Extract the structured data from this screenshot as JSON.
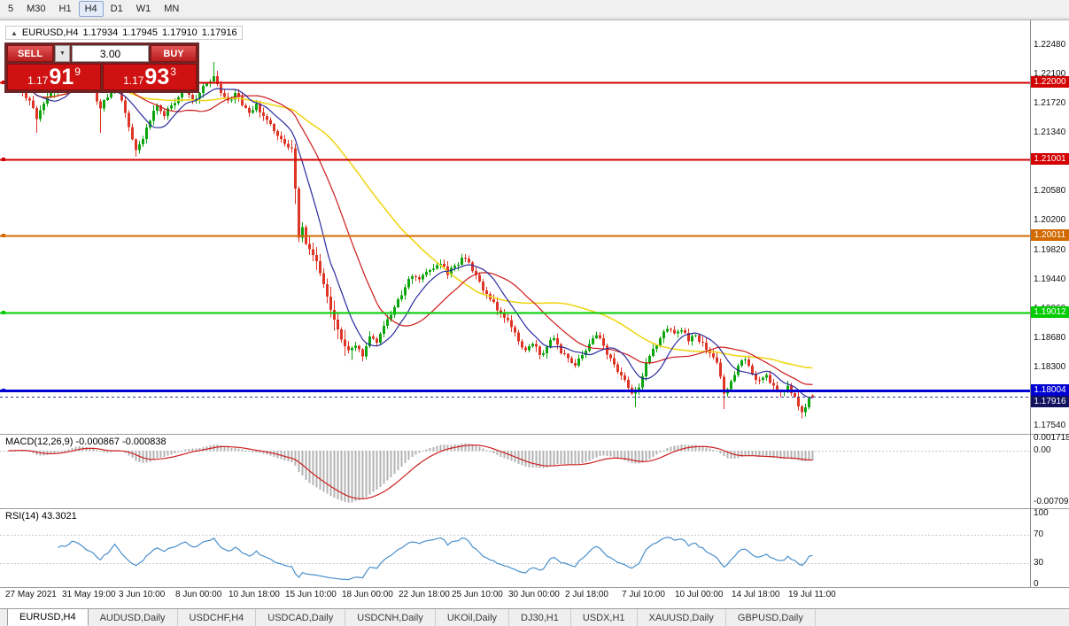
{
  "toolbar": {
    "timeframes": [
      {
        "label": "5",
        "active": false
      },
      {
        "label": "M30",
        "active": false
      },
      {
        "label": "H1",
        "active": false
      },
      {
        "label": "H4",
        "active": true
      },
      {
        "label": "D1",
        "active": false
      },
      {
        "label": "W1",
        "active": false
      },
      {
        "label": "MN",
        "active": false
      }
    ]
  },
  "chart": {
    "title": {
      "symbol": "EURUSD,H4",
      "open": "1.17934",
      "high": "1.17945",
      "low": "1.17910",
      "close": "1.17916"
    },
    "one_click": {
      "sell_label": "SELL",
      "buy_label": "BUY",
      "volume": "3.00",
      "bid": {
        "prefix": "1.17",
        "big": "91",
        "sup": "9"
      },
      "ask": {
        "prefix": "1.17",
        "big": "93",
        "sup": "3"
      }
    }
  },
  "indicators": {
    "macd": {
      "name": "MACD(12,26,9)",
      "values": "-0.000867 -0.000838"
    },
    "rsi": {
      "name": "RSI(14)",
      "value": "43.3021"
    }
  },
  "tabs": [
    {
      "label": "EURUSD,H4",
      "active": true
    },
    {
      "label": "AUDUSD,Daily",
      "active": false
    },
    {
      "label": "USDCHF,H4",
      "active": false
    },
    {
      "label": "USDCAD,Daily",
      "active": false
    },
    {
      "label": "USDCNH,Daily",
      "active": false
    },
    {
      "label": "UKOil,Daily",
      "active": false
    },
    {
      "label": "DJ30,H1",
      "active": false
    },
    {
      "label": "USDX,H1",
      "active": false
    },
    {
      "label": "XAUUSD,Daily",
      "active": false
    },
    {
      "label": "GBPUSD,Daily",
      "active": false
    }
  ],
  "chart_data": {
    "type": "candlestick",
    "symbol": "EURUSD",
    "timeframe": "H4",
    "ohlc_current": {
      "open": 1.17934,
      "high": 1.17945,
      "low": 1.1791,
      "close": 1.17916
    },
    "candle_colors": {
      "up": "#0da50d",
      "down": "#dd3526"
    },
    "y_axis": {
      "ticks": [
        {
          "label": "1.22480",
          "v": 1.2248
        },
        {
          "label": "1.22100",
          "v": 1.221
        },
        {
          "label": "1.21720",
          "v": 1.2172
        },
        {
          "label": "1.21340",
          "v": 1.2134
        },
        {
          "label": "1.20960",
          "v": 1.2096
        },
        {
          "label": "1.20580",
          "v": 1.2058
        },
        {
          "label": "1.20200",
          "v": 1.202
        },
        {
          "label": "1.19820",
          "v": 1.1982
        },
        {
          "label": "1.19440",
          "v": 1.1944
        },
        {
          "label": "1.19060",
          "v": 1.1906
        },
        {
          "label": "1.18680",
          "v": 1.1868
        },
        {
          "label": "1.18300",
          "v": 1.183
        },
        {
          "label": "1.17920",
          "v": 1.1792
        },
        {
          "label": "1.17540",
          "v": 1.1754
        }
      ]
    },
    "x_axis": {
      "labels": [
        {
          "index": 0,
          "text": "27 May 2021"
        },
        {
          "index": 16,
          "text": "31 May 19:00"
        },
        {
          "index": 32,
          "text": "3 Jun 10:00"
        },
        {
          "index": 48,
          "text": "8 Jun 00:00"
        },
        {
          "index": 63,
          "text": "10 Jun 18:00"
        },
        {
          "index": 79,
          "text": "15 Jun 10:00"
        },
        {
          "index": 95,
          "text": "18 Jun 00:00"
        },
        {
          "index": 111,
          "text": "22 Jun 18:00"
        },
        {
          "index": 126,
          "text": "25 Jun 10:00"
        },
        {
          "index": 142,
          "text": "30 Jun 00:00"
        },
        {
          "index": 158,
          "text": "2 Jul 18:00"
        },
        {
          "index": 174,
          "text": "7 Jul 10:00"
        },
        {
          "index": 189,
          "text": "10 Jul 00:00"
        },
        {
          "index": 205,
          "text": "14 Jul 18:00"
        },
        {
          "index": 221,
          "text": "19 Jul 11:00"
        }
      ]
    },
    "close_anchors": [
      [
        0,
        1.2192
      ],
      [
        2,
        1.2202
      ],
      [
        4,
        1.2188
      ],
      [
        6,
        1.2176
      ],
      [
        8,
        1.2152
      ],
      [
        10,
        1.2172
      ],
      [
        12,
        1.2186
      ],
      [
        14,
        1.2196
      ],
      [
        16,
        1.22
      ],
      [
        18,
        1.2216
      ],
      [
        20,
        1.221
      ],
      [
        22,
        1.2196
      ],
      [
        24,
        1.2188
      ],
      [
        26,
        1.2166
      ],
      [
        28,
        1.218
      ],
      [
        30,
        1.2206
      ],
      [
        32,
        1.2176
      ],
      [
        34,
        1.2142
      ],
      [
        36,
        1.2112
      ],
      [
        38,
        1.2126
      ],
      [
        40,
        1.215
      ],
      [
        42,
        1.217
      ],
      [
        44,
        1.2156
      ],
      [
        46,
        1.217
      ],
      [
        48,
        1.218
      ],
      [
        50,
        1.2192
      ],
      [
        52,
        1.2178
      ],
      [
        54,
        1.2186
      ],
      [
        56,
        1.2198
      ],
      [
        58,
        1.2208
      ],
      [
        60,
        1.2186
      ],
      [
        62,
        1.2176
      ],
      [
        64,
        1.2186
      ],
      [
        66,
        1.217
      ],
      [
        68,
        1.216
      ],
      [
        70,
        1.2172
      ],
      [
        72,
        1.2156
      ],
      [
        74,
        1.2146
      ],
      [
        76,
        1.213
      ],
      [
        78,
        1.212
      ],
      [
        80,
        1.2114
      ],
      [
        81,
        1.2062
      ],
      [
        82,
        1.1998
      ],
      [
        83,
        1.2012
      ],
      [
        84,
        1.199
      ],
      [
        86,
        1.1976
      ],
      [
        88,
        1.1952
      ],
      [
        90,
        1.1922
      ],
      [
        92,
        1.1892
      ],
      [
        94,
        1.1866
      ],
      [
        96,
        1.1852
      ],
      [
        98,
        1.1858
      ],
      [
        100,
        1.1844
      ],
      [
        102,
        1.187
      ],
      [
        104,
        1.1862
      ],
      [
        106,
        1.1884
      ],
      [
        108,
        1.1898
      ],
      [
        110,
        1.1918
      ],
      [
        112,
        1.1934
      ],
      [
        114,
        1.1948
      ],
      [
        116,
        1.1944
      ],
      [
        118,
        1.1954
      ],
      [
        120,
        1.1958
      ],
      [
        122,
        1.1964
      ],
      [
        124,
        1.195
      ],
      [
        126,
        1.1962
      ],
      [
        128,
        1.1972
      ],
      [
        130,
        1.1966
      ],
      [
        132,
        1.195
      ],
      [
        134,
        1.193
      ],
      [
        136,
        1.1918
      ],
      [
        138,
        1.1904
      ],
      [
        140,
        1.1894
      ],
      [
        142,
        1.1882
      ],
      [
        144,
        1.1864
      ],
      [
        146,
        1.1852
      ],
      [
        148,
        1.186
      ],
      [
        150,
        1.1846
      ],
      [
        152,
        1.1856
      ],
      [
        154,
        1.1868
      ],
      [
        156,
        1.1848
      ],
      [
        158,
        1.1842
      ],
      [
        160,
        1.1832
      ],
      [
        162,
        1.1846
      ],
      [
        164,
        1.186
      ],
      [
        166,
        1.1872
      ],
      [
        168,
        1.1858
      ],
      [
        170,
        1.1842
      ],
      [
        172,
        1.1824
      ],
      [
        174,
        1.1814
      ],
      [
        176,
        1.1796
      ],
      [
        178,
        1.1804
      ],
      [
        180,
        1.1836
      ],
      [
        182,
        1.1854
      ],
      [
        184,
        1.1868
      ],
      [
        186,
        1.188
      ],
      [
        188,
        1.1874
      ],
      [
        190,
        1.1878
      ],
      [
        192,
        1.1864
      ],
      [
        194,
        1.1872
      ],
      [
        196,
        1.1862
      ],
      [
        198,
        1.1848
      ],
      [
        200,
        1.1836
      ],
      [
        202,
        1.1796
      ],
      [
        204,
        1.1812
      ],
      [
        206,
        1.1832
      ],
      [
        208,
        1.184
      ],
      [
        210,
        1.1822
      ],
      [
        212,
        1.1814
      ],
      [
        214,
        1.182
      ],
      [
        216,
        1.1806
      ],
      [
        218,
        1.1798
      ],
      [
        220,
        1.1806
      ],
      [
        222,
        1.1792
      ],
      [
        224,
        1.1772
      ],
      [
        225,
        1.1778
      ],
      [
        226,
        1.179
      ],
      [
        227,
        1.17916
      ]
    ],
    "wick_events": [
      {
        "index": 8,
        "low": 1.2134
      },
      {
        "index": 26,
        "low": 1.2134
      },
      {
        "index": 30,
        "high": 1.2224
      },
      {
        "index": 36,
        "low": 1.2103
      },
      {
        "index": 58,
        "high": 1.2226
      },
      {
        "index": 81,
        "low": 1.2042
      },
      {
        "index": 100,
        "low": 1.1838
      },
      {
        "index": 177,
        "low": 1.1778
      },
      {
        "index": 202,
        "low": 1.1776
      },
      {
        "index": 224,
        "low": 1.1764
      }
    ],
    "horizontal_lines": [
      {
        "price": 1.22,
        "label": "1.22000",
        "color": "#d20000",
        "width": 2
      },
      {
        "price": 1.21001,
        "label": "1.21001",
        "color": "#d20000",
        "width": 2
      },
      {
        "price": 1.20011,
        "label": "1.20011",
        "color": "#d26a00",
        "width": 2
      },
      {
        "price": 1.19012,
        "label": "1.19012",
        "color": "#00cc00",
        "width": 2
      },
      {
        "price": 1.18004,
        "label": "1.18004",
        "color": "#0000d2",
        "width": 3
      }
    ],
    "current_price": {
      "value": 1.17916,
      "label": "1.17916",
      "badge_color": "#12125e"
    },
    "moving_averages": [
      {
        "period": 52,
        "color": "#f0d61a",
        "width": 1.6
      },
      {
        "period": 24,
        "color": "#cc1a1a",
        "width": 1.2
      },
      {
        "period": 10,
        "color": "#2b2b9e",
        "width": 1.2
      }
    ],
    "macd": {
      "params": "12,26,9",
      "main_value": -0.000867,
      "signal_value": -0.000838,
      "axis": [
        {
          "label": "0.001718",
          "v": 0.001718
        },
        {
          "label": "0.00",
          "v": 0
        },
        {
          "label": "-0.00709",
          "v": -0.00709
        }
      ],
      "hist_color": "#b3b3b3",
      "signal_color": "#cc2020"
    },
    "rsi": {
      "period": 14,
      "value": 43.3021,
      "axis": [
        100,
        70,
        30,
        0
      ],
      "levels": [
        70,
        30
      ],
      "color": "#4a8fcb"
    }
  }
}
